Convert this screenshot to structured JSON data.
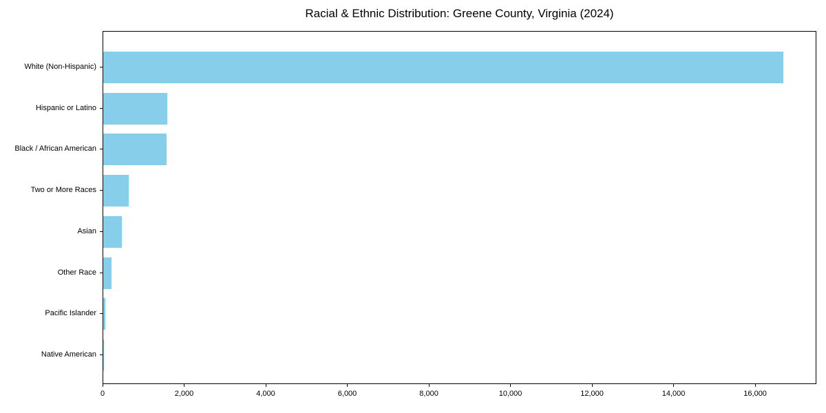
{
  "chart_data": {
    "type": "bar",
    "orientation": "horizontal",
    "title": "Racial & Ethnic Distribution: Greene County, Virginia (2024)",
    "categories": [
      "White (Non-Hispanic)",
      "Hispanic or Latino",
      "Black / African American",
      "Two or More Races",
      "Asian",
      "Other Race",
      "Pacific Islander",
      "Native American"
    ],
    "values": [
      16670,
      1570,
      1550,
      630,
      455,
      200,
      50,
      10
    ],
    "xlabel": "",
    "ylabel": "",
    "xlim": [
      0,
      17500
    ],
    "x_ticks": [
      0,
      2000,
      4000,
      6000,
      8000,
      10000,
      12000,
      14000,
      16000
    ],
    "x_tick_labels": [
      "0",
      "2,000",
      "4,000",
      "6,000",
      "8,000",
      "10,000",
      "12,000",
      "14,000",
      "16,000"
    ],
    "bar_color": "#87CEEB",
    "grid": false,
    "legend": "none",
    "sort_order": "descending"
  },
  "colors": {
    "bar": "#87CEEB",
    "axes": "#000000",
    "text": "#000000",
    "background": "#FFFFFF"
  }
}
